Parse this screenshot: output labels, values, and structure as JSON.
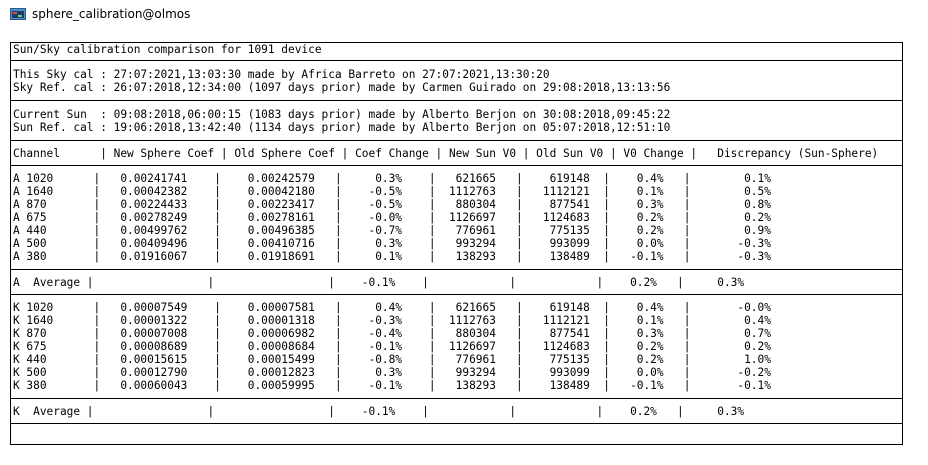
{
  "window": {
    "title": "sphere_calibration@olmos",
    "icon": "terminal-app-icon"
  },
  "report": {
    "heading": "Sun/Sky calibration comparison for 1091 device",
    "sky_cal": "This Sky cal : 27:07:2021,13:03:30 made by Africa Barreto on 27:07:2021,13:30:20",
    "sky_ref_cal": "Sky Ref. cal : 26:07:2018,12:34:00 (1097 days prior) made by Carmen Guirado on 29:08:2018,13:13:56",
    "current_sun": "Current Sun  : 09:08:2018,06:00:15 (1083 days prior) made by Alberto Berjon on 30:08:2018,09:45:22",
    "sun_ref_cal": "Sun Ref. cal : 19:06:2018,13:42:40 (1134 days prior) made by Alberto Berjon on 05:07:2018,12:51:10",
    "header": "Channel      | New Sphere Coef | Old Sphere Coef | Coef Change | New Sun V0 | Old Sun V0 | V0 Change |   Discrepancy (Sun-Sphere)",
    "a_rows": [
      "A 1020      |   0.00241741    |    0.00242579   |     0.3%    |   621665   |    619148  |    0.4%   |        0.1%",
      "A 1640      |   0.00042382    |    0.00042180   |    -0.5%    |  1112763   |   1112121  |    0.1%   |        0.5%",
      "A 870       |   0.00224433    |    0.00223417   |    -0.5%    |   880304   |    877541  |    0.3%   |        0.8%",
      "A 675       |   0.00278249    |    0.00278161   |    -0.0%    |  1126697   |   1124683  |    0.2%   |        0.2%",
      "A 440       |   0.00499762    |    0.00496385   |    -0.7%    |   776961   |    775135  |    0.2%   |        0.9%",
      "A 500       |   0.00409496    |    0.00410716   |     0.3%    |   993294   |    993099  |    0.0%   |       -0.3%",
      "A 380       |   0.01916067    |    0.01918691   |     0.1%    |   138293   |    138489  |   -0.1%   |       -0.3%"
    ],
    "a_average": "A  Average |                 |                 |    -0.1%    |            |            |    0.2%   |     0.3%",
    "k_rows": [
      "K 1020      |   0.00007549    |    0.00007581   |     0.4%    |   621665   |    619148  |    0.4%   |       -0.0%",
      "K 1640      |   0.00001322    |    0.00001318   |    -0.3%    |  1112763   |   1112121  |    0.1%   |        0.4%",
      "K 870       |   0.00007008    |    0.00006982   |    -0.4%    |   880304   |    877541  |    0.3%   |        0.7%",
      "K 675       |   0.00008689    |    0.00008684   |    -0.1%    |  1126697   |   1124683  |    0.2%   |        0.2%",
      "K 440       |   0.00015615    |    0.00015499   |    -0.8%    |   776961   |    775135  |    0.2%   |        1.0%",
      "K 500       |   0.00012790    |    0.00012823   |     0.3%    |   993294   |    993099  |    0.0%   |       -0.2%",
      "K 380       |   0.00060043    |    0.00059995   |    -0.1%    |   138293   |    138489  |   -0.1%   |       -0.1%"
    ],
    "k_average": "K  Average |                 |                 |    -0.1%    |            |            |    0.2%   |     0.3%"
  }
}
